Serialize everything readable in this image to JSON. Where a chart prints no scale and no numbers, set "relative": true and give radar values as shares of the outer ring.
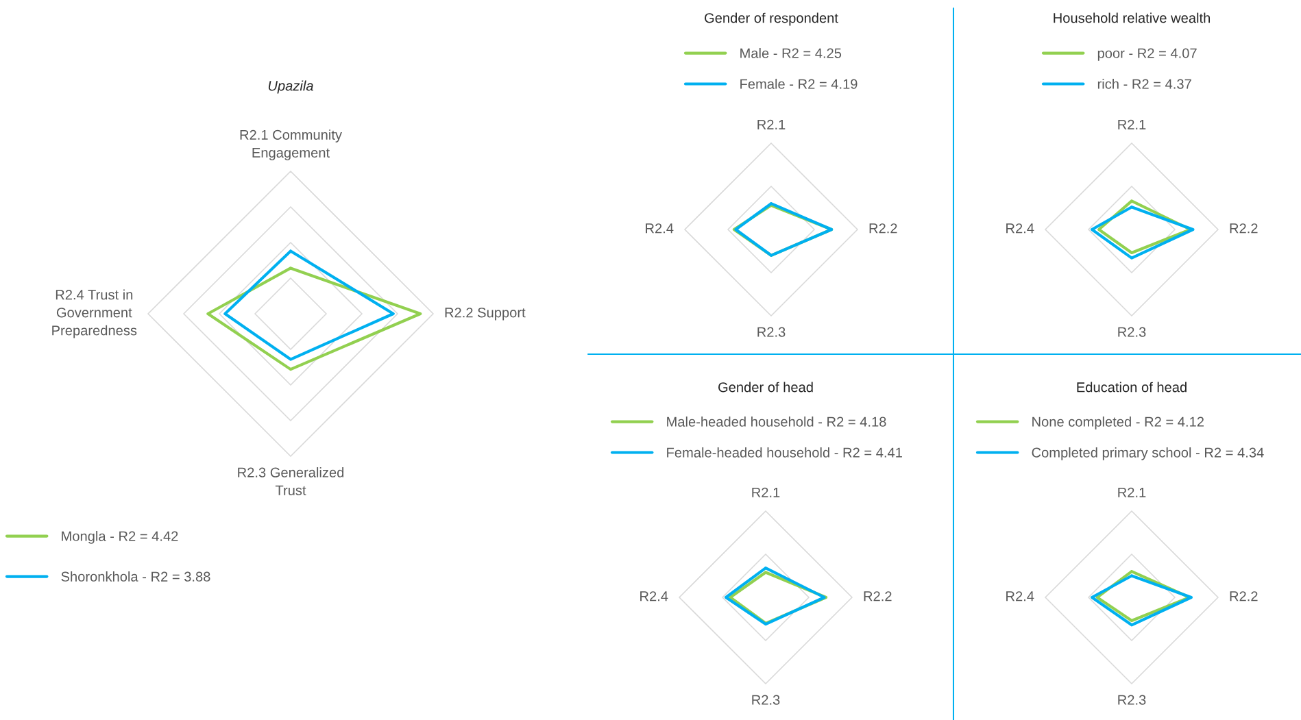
{
  "chart_data": [
    {
      "type": "radar",
      "title": "Upazila",
      "relative": true,
      "legend": "bottom left",
      "categories": [
        "R2.1 Community\nEngagement",
        "R2.2 Support",
        "R2.3 Generalized\nTrust",
        "R2.4 Trust in\nGovernment\nPreparedness"
      ],
      "series": [
        {
          "name": "Mongla - R2 = 4.42",
          "color": "#92d050",
          "values": [
            0.32,
            0.91,
            0.39,
            0.58
          ]
        },
        {
          "name": "Shoronkhola - R2 = 3.88",
          "color": "#00b0f0",
          "values": [
            0.44,
            0.72,
            0.32,
            0.46
          ]
        }
      ]
    },
    {
      "type": "radar",
      "title": "Gender of respondent",
      "relative": true,
      "legend": "top",
      "categories": [
        "R2.1",
        "R2.2",
        "R2.3",
        "R2.4"
      ],
      "series": [
        {
          "name": "Male - R2 = 4.25",
          "color": "#92d050",
          "values": [
            0.28,
            0.7,
            0.3,
            0.43
          ]
        },
        {
          "name": "Female - R2 = 4.19",
          "color": "#00b0f0",
          "values": [
            0.3,
            0.7,
            0.3,
            0.41
          ]
        }
      ]
    },
    {
      "type": "radar",
      "title": "Household relative wealth",
      "relative": true,
      "legend": "top",
      "categories": [
        "R2.1",
        "R2.2",
        "R2.3",
        "R2.4"
      ],
      "series": [
        {
          "name": "poor - R2 = 4.07",
          "color": "#92d050",
          "values": [
            0.33,
            0.68,
            0.27,
            0.38
          ]
        },
        {
          "name": "rich - R2 = 4.37",
          "color": "#00b0f0",
          "values": [
            0.26,
            0.71,
            0.33,
            0.46
          ]
        }
      ]
    },
    {
      "type": "radar",
      "title": "Gender of head",
      "relative": true,
      "legend": "top",
      "categories": [
        "R2.1",
        "R2.2",
        "R2.3",
        "R2.4"
      ],
      "series": [
        {
          "name": "Male-headed household - R2 = 4.18",
          "color": "#92d050",
          "values": [
            0.29,
            0.7,
            0.3,
            0.41
          ]
        },
        {
          "name": "Female-headed household - R2 = 4.41",
          "color": "#00b0f0",
          "values": [
            0.34,
            0.68,
            0.31,
            0.46
          ]
        }
      ]
    },
    {
      "type": "radar",
      "title": "Education of head",
      "relative": true,
      "legend": "top",
      "categories": [
        "R2.1",
        "R2.2",
        "R2.3",
        "R2.4"
      ],
      "series": [
        {
          "name": "None completed - R2 = 4.12",
          "color": "#92d050",
          "values": [
            0.3,
            0.67,
            0.27,
            0.4
          ]
        },
        {
          "name": "Completed primary school - R2 = 4.34",
          "color": "#00b0f0",
          "values": [
            0.25,
            0.69,
            0.32,
            0.46
          ]
        }
      ]
    }
  ]
}
